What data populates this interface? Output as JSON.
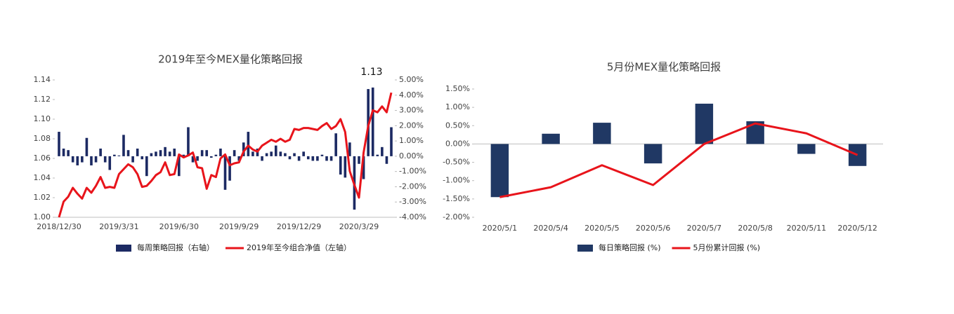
{
  "chart_data": [
    {
      "type": "combo",
      "title": "2019年至今MEX量化策略回报",
      "annotation": "1.13",
      "categories": [
        "2018/12/30",
        null,
        null,
        null,
        null,
        null,
        null,
        null,
        null,
        null,
        null,
        null,
        null,
        "2019/3/31",
        null,
        null,
        null,
        null,
        null,
        null,
        null,
        null,
        null,
        null,
        null,
        null,
        "2019/6/30",
        null,
        null,
        null,
        null,
        null,
        null,
        null,
        null,
        null,
        null,
        null,
        null,
        "2019/9/29",
        null,
        null,
        null,
        null,
        null,
        null,
        null,
        null,
        null,
        null,
        null,
        null,
        "2019/12/29",
        null,
        null,
        null,
        null,
        null,
        null,
        null,
        null,
        null,
        null,
        null,
        null,
        "2020/3/29",
        null,
        null,
        null,
        null,
        null,
        null,
        null
      ],
      "series": [
        {
          "name": "每周策略回报（右轴）",
          "type": "bar",
          "axis": "y2",
          "color": "#1c2a63",
          "values": [
            1.6,
            0.5,
            0.4,
            -0.4,
            -0.6,
            -0.4,
            1.2,
            -0.6,
            -0.4,
            0.5,
            -0.4,
            -0.9,
            0.1,
            0.05,
            1.4,
            0.4,
            -0.4,
            0.5,
            -0.2,
            -1.3,
            0.2,
            0.3,
            0.4,
            0.6,
            0.3,
            0.5,
            -1.3,
            0.1,
            1.9,
            -0.4,
            -0.3,
            0.4,
            0.4,
            -0.1,
            0.1,
            0.5,
            -2.2,
            -1.6,
            0.4,
            -0.3,
            0.9,
            1.6,
            0.3,
            0.5,
            -0.3,
            0.2,
            0.3,
            0.7,
            0.3,
            0.2,
            -0.2,
            0.2,
            -0.3,
            0.3,
            -0.2,
            -0.3,
            -0.3,
            0.1,
            -0.3,
            -0.3,
            1.5,
            -1.2,
            -1.4,
            0.9,
            -3.5,
            -0.5,
            -1.5,
            4.4,
            4.5,
            0.1,
            0.6,
            -0.5,
            1.9
          ]
        },
        {
          "name": "2019年至今组合净值（左轴）",
          "type": "line",
          "axis": "y",
          "color": "#e8141b",
          "values": [
            1.0,
            1.016,
            1.021,
            1.03,
            1.024,
            1.019,
            1.03,
            1.025,
            1.032,
            1.041,
            1.03,
            1.031,
            1.03,
            1.044,
            1.049,
            1.054,
            1.051,
            1.044,
            1.031,
            1.032,
            1.037,
            1.043,
            1.046,
            1.056,
            1.043,
            1.044,
            1.064,
            1.061,
            1.063,
            1.066,
            1.051,
            1.05,
            1.029,
            1.043,
            1.041,
            1.06,
            1.064,
            1.053,
            1.055,
            1.056,
            1.067,
            1.073,
            1.069,
            1.067,
            1.073,
            1.076,
            1.079,
            1.077,
            1.08,
            1.077,
            1.079,
            1.09,
            1.089,
            1.091,
            1.091,
            1.09,
            1.089,
            1.093,
            1.096,
            1.09,
            1.093,
            1.1,
            1.087,
            1.047,
            1.033,
            1.02,
            1.066,
            1.093,
            1.109,
            1.107,
            1.113,
            1.107,
            1.127
          ]
        }
      ],
      "ylim": [
        1.0,
        1.14
      ],
      "yticks": [
        {
          "value": 1.0,
          "label": "1.00"
        },
        {
          "value": 1.02,
          "label": "1.02"
        },
        {
          "value": 1.04,
          "label": "1.04"
        },
        {
          "value": 1.06,
          "label": "1.06"
        },
        {
          "value": 1.08,
          "label": "1.08"
        },
        {
          "value": 1.1,
          "label": "1.10"
        },
        {
          "value": 1.12,
          "label": "1.12"
        },
        {
          "value": 1.14,
          "label": "1.14"
        }
      ],
      "y2lim": [
        -4,
        5
      ],
      "y2ticks": [
        {
          "value": -4,
          "label": "-4.00%"
        },
        {
          "value": -3,
          "label": "-3.00%"
        },
        {
          "value": -2,
          "label": "-2.00%"
        },
        {
          "value": -1,
          "label": "-1.00%"
        },
        {
          "value": 0,
          "label": "0.00%"
        },
        {
          "value": 1,
          "label": "1.00%"
        },
        {
          "value": 2,
          "label": "2.00%"
        },
        {
          "value": 3,
          "label": "3.00%"
        },
        {
          "value": 4,
          "label": "4.00%"
        },
        {
          "value": 5,
          "label": "5.00%"
        }
      ],
      "legend": "bottom"
    },
    {
      "type": "combo",
      "title": "5月份MEX量化策略回报",
      "categories": [
        "2020/5/1",
        "2020/5/4",
        "2020/5/5",
        "2020/5/6",
        "2020/5/7",
        "2020/5/8",
        "2020/5/11",
        "2020/5/12"
      ],
      "series": [
        {
          "name": "每日策略回报 (%)",
          "type": "bar",
          "axis": "y",
          "color": "#203864",
          "values": [
            -1.45,
            0.28,
            0.58,
            -0.53,
            1.1,
            0.62,
            -0.27,
            -0.6
          ]
        },
        {
          "name": "5月份累计回报 (%)",
          "type": "line",
          "axis": "y",
          "color": "#e8141b",
          "values": [
            -1.45,
            -1.18,
            -0.58,
            -1.12,
            0.0,
            0.56,
            0.29,
            -0.3
          ]
        }
      ],
      "ylim": [
        -2,
        1.5
      ],
      "yticks": [
        {
          "value": -2,
          "label": "-2.00%"
        },
        {
          "value": -1.5,
          "label": "-1.50%"
        },
        {
          "value": -1,
          "label": "-1.00%"
        },
        {
          "value": -0.5,
          "label": "-0.50%"
        },
        {
          "value": 0,
          "label": "0.00%"
        },
        {
          "value": 0.5,
          "label": "0.50%"
        },
        {
          "value": 1,
          "label": "1.00%"
        },
        {
          "value": 1.5,
          "label": "1.50%"
        }
      ],
      "legend": "bottom"
    }
  ]
}
